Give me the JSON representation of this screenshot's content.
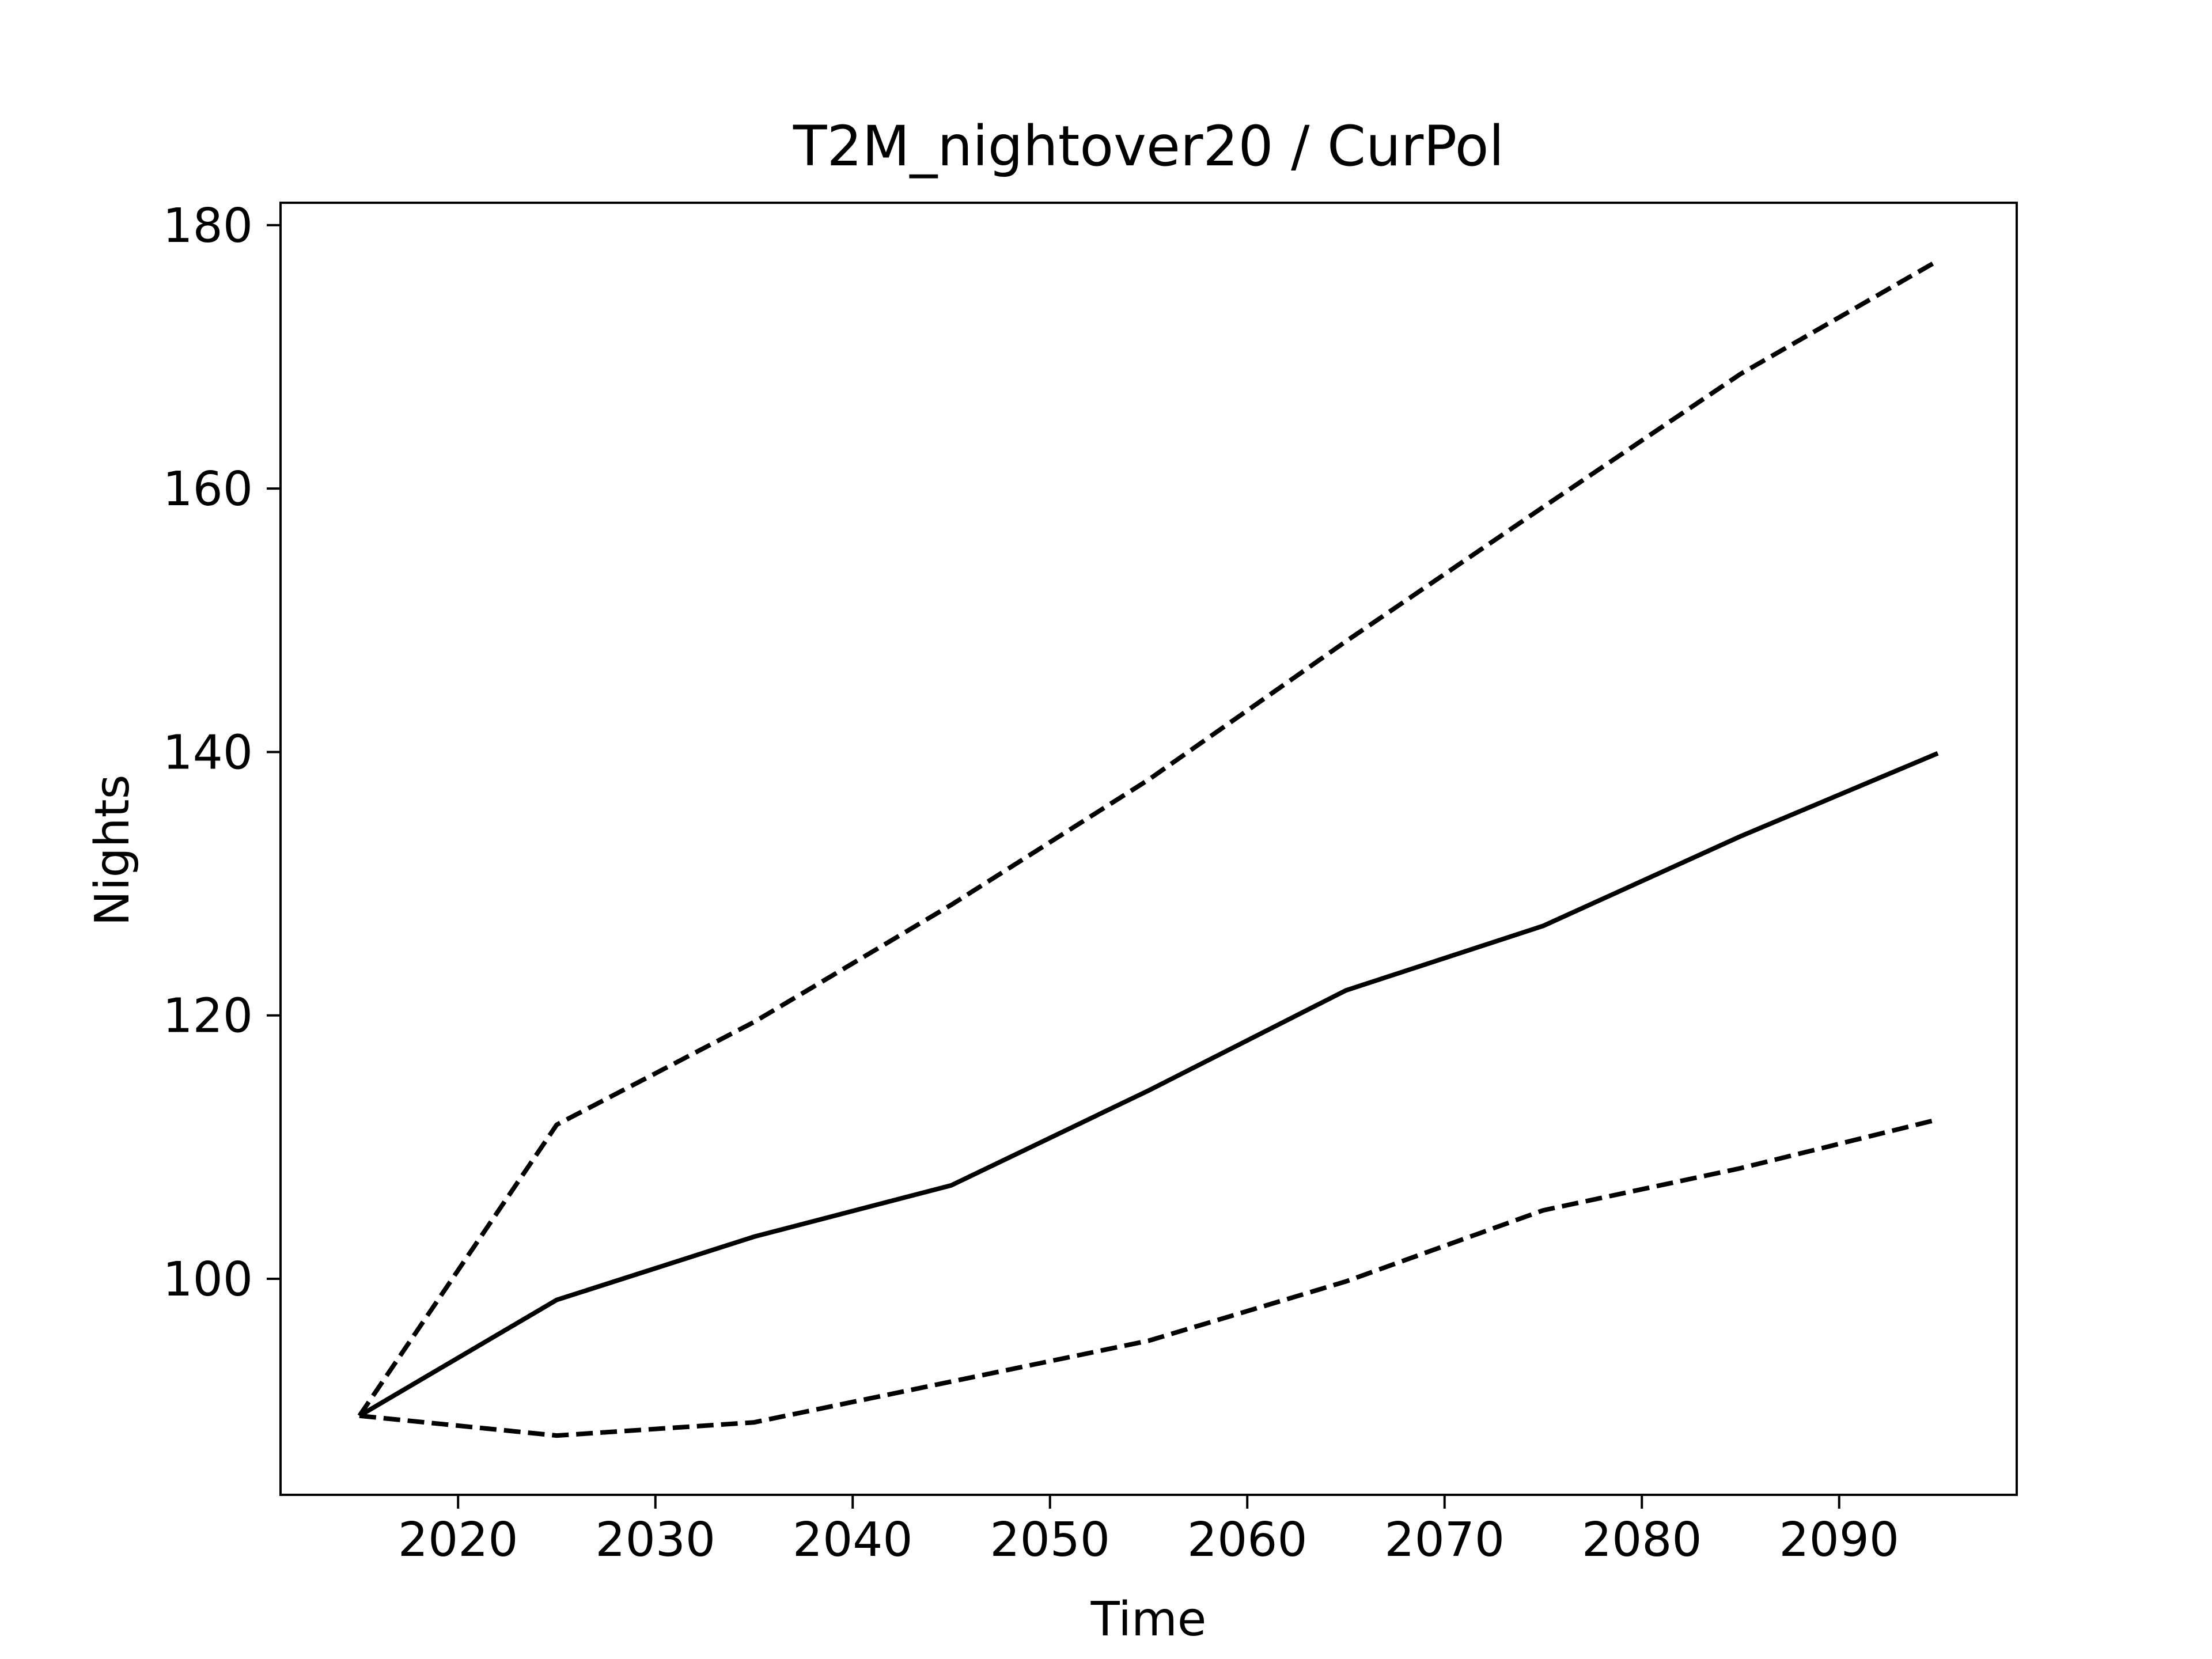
{
  "chart_data": {
    "type": "line",
    "title": "T2M_nightover20 / CurPol",
    "xlabel": "Time",
    "ylabel": "Nights",
    "xlim": [
      2011,
      2099
    ],
    "ylim": [
      83.6,
      181.7
    ],
    "xticks": [
      2020,
      2030,
      2040,
      2050,
      2060,
      2070,
      2080,
      2090
    ],
    "yticks": [
      100,
      120,
      140,
      160,
      180
    ],
    "grid": false,
    "line_color": "#000000",
    "series": [
      {
        "style": "solid",
        "x": [
          2015,
          2025,
          2035,
          2045,
          2055,
          2065,
          2075,
          2085,
          2095
        ],
        "y": [
          89.6,
          98.4,
          103.2,
          107.1,
          114.3,
          121.9,
          126.8,
          133.6,
          139.9
        ]
      },
      {
        "style": "dashed",
        "x": [
          2015,
          2025,
          2035,
          2045,
          2055,
          2065,
          2075,
          2085,
          2095
        ],
        "y": [
          89.6,
          111.7,
          119.5,
          128.4,
          137.9,
          148.4,
          158.6,
          168.7,
          177.3
        ]
      },
      {
        "style": "dashed",
        "x": [
          2015,
          2025,
          2035,
          2045,
          2055,
          2065,
          2075,
          2085,
          2095
        ],
        "y": [
          89.6,
          88.1,
          89.1,
          92.2,
          95.3,
          99.8,
          105.2,
          108.4,
          112.1
        ]
      }
    ]
  }
}
